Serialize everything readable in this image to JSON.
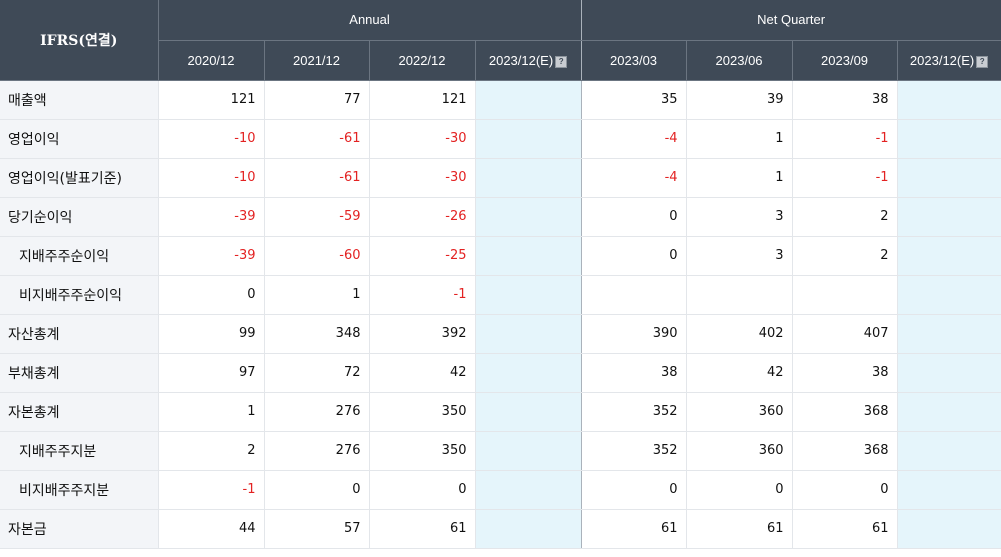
{
  "header": {
    "corner": "IFRS(연결)",
    "annual": "Annual",
    "quarter": "Net Quarter",
    "annual_periods": [
      "2020/12",
      "2021/12",
      "2022/12",
      "2023/12(E)"
    ],
    "quarter_periods": [
      "2023/03",
      "2023/06",
      "2023/09",
      "2023/12(E)"
    ],
    "estimate_icon": "question-mark-icon"
  },
  "colors": {
    "header_bg": "#3f4a57",
    "label_bg": "#f3f5f8",
    "estimate_bg": "#e5f5fb",
    "negative": "#e32222"
  },
  "rows": [
    {
      "label": "매출액",
      "indent": false,
      "annual": [
        "121",
        "77",
        "121",
        ""
      ],
      "quarter": [
        "35",
        "39",
        "38",
        ""
      ]
    },
    {
      "label": "영업이익",
      "indent": false,
      "annual": [
        "-10",
        "-61",
        "-30",
        ""
      ],
      "quarter": [
        "-4",
        "1",
        "-1",
        ""
      ]
    },
    {
      "label": "영업이익(발표기준)",
      "indent": false,
      "annual": [
        "-10",
        "-61",
        "-30",
        ""
      ],
      "quarter": [
        "-4",
        "1",
        "-1",
        ""
      ]
    },
    {
      "label": "당기순이익",
      "indent": false,
      "annual": [
        "-39",
        "-59",
        "-26",
        ""
      ],
      "quarter": [
        "0",
        "3",
        "2",
        ""
      ]
    },
    {
      "label": "지배주주순이익",
      "indent": true,
      "annual": [
        "-39",
        "-60",
        "-25",
        ""
      ],
      "quarter": [
        "0",
        "3",
        "2",
        ""
      ]
    },
    {
      "label": "비지배주주순이익",
      "indent": true,
      "annual": [
        "0",
        "1",
        "-1",
        ""
      ],
      "quarter": [
        "",
        "",
        "",
        ""
      ]
    },
    {
      "label": "자산총계",
      "indent": false,
      "annual": [
        "99",
        "348",
        "392",
        ""
      ],
      "quarter": [
        "390",
        "402",
        "407",
        ""
      ]
    },
    {
      "label": "부채총계",
      "indent": false,
      "annual": [
        "97",
        "72",
        "42",
        ""
      ],
      "quarter": [
        "38",
        "42",
        "38",
        ""
      ]
    },
    {
      "label": "자본총계",
      "indent": false,
      "annual": [
        "1",
        "276",
        "350",
        ""
      ],
      "quarter": [
        "352",
        "360",
        "368",
        ""
      ]
    },
    {
      "label": "지배주주지분",
      "indent": true,
      "annual": [
        "2",
        "276",
        "350",
        ""
      ],
      "quarter": [
        "352",
        "360",
        "368",
        ""
      ]
    },
    {
      "label": "비지배주주지분",
      "indent": true,
      "annual": [
        "-1",
        "0",
        "0",
        ""
      ],
      "quarter": [
        "0",
        "0",
        "0",
        ""
      ]
    },
    {
      "label": "자본금",
      "indent": false,
      "annual": [
        "44",
        "57",
        "61",
        ""
      ],
      "quarter": [
        "61",
        "61",
        "61",
        ""
      ]
    }
  ]
}
